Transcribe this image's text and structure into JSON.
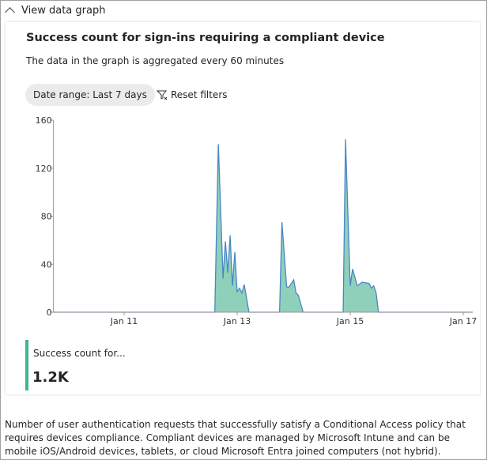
{
  "expander": {
    "label": "View data graph",
    "icon": "chevron-up-icon"
  },
  "card": {
    "title": "Success count for sign-ins requiring a compliant device",
    "subtitle": "The data in the graph is aggregated every 60 minutes",
    "date_range": "Date range: Last 7 days",
    "reset": "Reset filters",
    "reset_icon": "filter-clear-icon"
  },
  "chart_data": {
    "type": "area",
    "title": "",
    "xlabel": "",
    "ylabel": "",
    "ylim": [
      0,
      160
    ],
    "yticks": [
      "0",
      "40",
      "80",
      "120",
      "160"
    ],
    "xticks": [
      "Jan 11",
      "Jan 13",
      "Jan 15",
      "Jan 17"
    ],
    "xlim": [
      "Jan 9 18:00",
      "Jan 17 04:00"
    ],
    "grid": false,
    "fill_color": "#8fd0bb",
    "line_color": "#4a86c5",
    "points": [
      [
        "Jan 12 14:30",
        0
      ],
      [
        "Jan 12 16:00",
        140
      ],
      [
        "Jan 12 18:00",
        28
      ],
      [
        "Jan 12 19:00",
        59
      ],
      [
        "Jan 12 20:00",
        33
      ],
      [
        "Jan 12 21:00",
        64
      ],
      [
        "Jan 12 22:00",
        22
      ],
      [
        "Jan 12 23:00",
        50
      ],
      [
        "Jan 13 00:00",
        17
      ],
      [
        "Jan 13 01:00",
        20
      ],
      [
        "Jan 13 02:00",
        16
      ],
      [
        "Jan 13 03:00",
        23
      ],
      [
        "Jan 13 05:00",
        0
      ],
      [
        "Jan 13 18:00",
        0
      ],
      [
        "Jan 13 19:00",
        75
      ],
      [
        "Jan 13 21:00",
        21
      ],
      [
        "Jan 13 22:00",
        21
      ],
      [
        "Jan 14 00:00",
        27
      ],
      [
        "Jan 14 01:00",
        16
      ],
      [
        "Jan 14 02:00",
        14
      ],
      [
        "Jan 14 04:00",
        0
      ],
      [
        "Jan 14 21:00",
        0
      ],
      [
        "Jan 14 22:00",
        144
      ],
      [
        "Jan 15 00:00",
        22
      ],
      [
        "Jan 15 01:00",
        36
      ],
      [
        "Jan 15 03:00",
        22
      ],
      [
        "Jan 15 05:00",
        25
      ],
      [
        "Jan 15 08:00",
        24
      ],
      [
        "Jan 15 09:00",
        20
      ],
      [
        "Jan 15 10:00",
        22
      ],
      [
        "Jan 15 11:00",
        16
      ],
      [
        "Jan 15 12:00",
        0
      ]
    ]
  },
  "summary": {
    "label": "Success count for...",
    "value": "1.2K",
    "color": "#3fb68e"
  },
  "description": "Number of user authentication requests that successfully satisfy a Conditional Access policy that requires devices compliance. Compliant devices are managed by Microsoft Intune and can be mobile iOS/Android devices, tablets, or cloud Microsoft Entra joined computers (not hybrid)."
}
